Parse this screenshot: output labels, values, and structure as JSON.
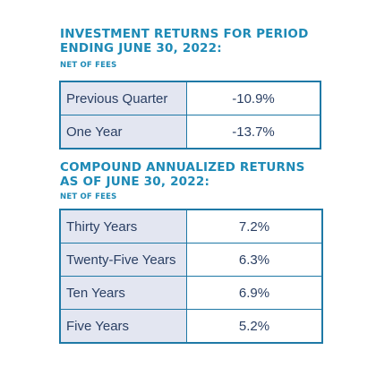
{
  "section1": {
    "title_line1": "INVESTMENT RETURNS FOR PERIOD",
    "title_line2": "ENDING JUNE 30, 2022:",
    "subtitle": "NET OF FEES",
    "rows": [
      {
        "label": "Previous Quarter",
        "value": "-10.9%"
      },
      {
        "label": "One Year",
        "value": "-13.7%"
      }
    ]
  },
  "section2": {
    "title_line1": "COMPOUND ANNUALIZED RETURNS",
    "title_line2": "AS OF JUNE 30, 2022:",
    "subtitle": "NET OF FEES",
    "rows": [
      {
        "label": "Thirty Years",
        "value": "7.2%"
      },
      {
        "label": "Twenty-Five Years",
        "value": "6.3%"
      },
      {
        "label": "Ten Years",
        "value": "6.9%"
      },
      {
        "label": "Five Years",
        "value": "5.2%"
      }
    ]
  },
  "colors": {
    "heading": "#1e8ab6",
    "border": "#1f79a6",
    "label_bg": "#e3e6f1",
    "text": "#2a3f63"
  }
}
